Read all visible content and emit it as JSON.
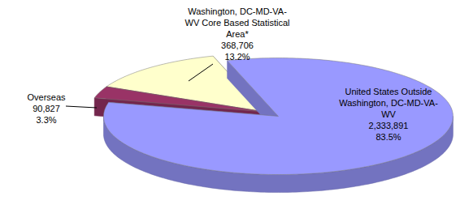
{
  "chart_data": {
    "type": "pie",
    "categories": [
      "United States Outside Washington, DC-MD-VA-WV",
      "Overseas",
      "Washington, DC-MD-VA-WV Core Based Statistical Area*"
    ],
    "values": [
      2333891,
      90827,
      368706
    ],
    "value_labels": [
      "2,333,891",
      "90,827",
      "368,706"
    ],
    "percentages": [
      83.5,
      3.3,
      13.2
    ],
    "percentage_labels": [
      "83.5%",
      "3.3%",
      "13.2%"
    ],
    "colors": [
      "#9999ff",
      "#993366",
      "#ffffcc"
    ],
    "data_labels": true
  }
}
